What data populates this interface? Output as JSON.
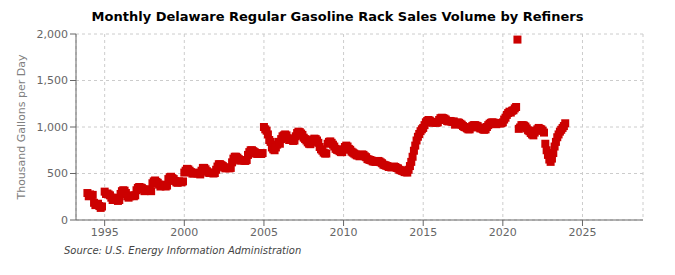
{
  "chart_data": {
    "type": "scatter",
    "title": "Monthly Delaware Regular Gasoline Rack Sales Volume by Refiners",
    "ylabel": "Thousand Gallons per Day",
    "annotations": [
      "Source: U.S. Energy Information Administration"
    ],
    "color": "#cc0000",
    "marker": "square",
    "grid": true,
    "xlim": [
      1993.2,
      2028.8
    ],
    "xticks": [
      1995,
      2000,
      2005,
      2010,
      2015,
      2020,
      2025
    ],
    "ylim": [
      0,
      2000
    ],
    "yticks": [
      0,
      500,
      {
        "value": 1000,
        "label": "1,000"
      },
      {
        "value": 1500,
        "label": "1,500"
      },
      {
        "value": 2000,
        "label": "2,000"
      }
    ],
    "x": [
      1993.917,
      1994,
      1994.083,
      1994.167,
      1994.25,
      1994.333,
      1994.417,
      1994.5,
      1994.583,
      1994.667,
      1994.75,
      1994.833,
      1995,
      1995.083,
      1995.167,
      1995.25,
      1995.333,
      1995.417,
      1995.5,
      1995.583,
      1995.667,
      1995.75,
      1995.833,
      1995.917,
      1996,
      1996.083,
      1996.167,
      1996.25,
      1996.333,
      1996.417,
      1996.5,
      1996.583,
      1996.667,
      1996.75,
      1996.833,
      1996.917,
      1997,
      1997.083,
      1997.167,
      1997.25,
      1997.333,
      1997.417,
      1997.5,
      1997.583,
      1997.667,
      1997.75,
      1997.833,
      1997.917,
      1998,
      1998.083,
      1998.167,
      1998.25,
      1998.333,
      1998.417,
      1998.5,
      1998.583,
      1998.667,
      1998.75,
      1998.833,
      1998.917,
      1999,
      1999.083,
      1999.167,
      1999.25,
      1999.333,
      1999.417,
      1999.5,
      1999.583,
      1999.667,
      1999.75,
      1999.833,
      1999.917,
      2000,
      2000.083,
      2000.167,
      2000.25,
      2000.333,
      2000.417,
      2000.5,
      2000.583,
      2000.667,
      2000.75,
      2000.833,
      2000.917,
      2001,
      2001.083,
      2001.167,
      2001.25,
      2001.333,
      2001.417,
      2001.5,
      2001.583,
      2001.667,
      2001.75,
      2001.833,
      2001.917,
      2002,
      2002.083,
      2002.167,
      2002.25,
      2002.333,
      2002.417,
      2002.5,
      2002.583,
      2002.667,
      2002.75,
      2002.833,
      2002.917,
      2003,
      2003.083,
      2003.167,
      2003.25,
      2003.333,
      2003.417,
      2003.5,
      2003.583,
      2003.667,
      2003.75,
      2003.833,
      2003.917,
      2004,
      2004.083,
      2004.167,
      2004.25,
      2004.333,
      2004.417,
      2004.5,
      2004.583,
      2004.667,
      2004.75,
      2004.833,
      2004.917,
      2005,
      2005.083,
      2005.167,
      2005.25,
      2005.333,
      2005.417,
      2005.5,
      2005.583,
      2005.667,
      2005.75,
      2005.833,
      2005.917,
      2006,
      2006.083,
      2006.167,
      2006.25,
      2006.333,
      2006.417,
      2006.5,
      2006.583,
      2006.667,
      2006.75,
      2006.833,
      2006.917,
      2007,
      2007.083,
      2007.167,
      2007.25,
      2007.333,
      2007.417,
      2007.5,
      2007.583,
      2007.667,
      2007.75,
      2007.833,
      2007.917,
      2008,
      2008.083,
      2008.167,
      2008.25,
      2008.333,
      2008.417,
      2008.5,
      2008.583,
      2008.667,
      2008.75,
      2008.833,
      2008.917,
      2009,
      2009.083,
      2009.167,
      2009.25,
      2009.333,
      2009.417,
      2009.5,
      2009.583,
      2009.667,
      2009.75,
      2009.833,
      2009.917,
      2010,
      2010.083,
      2010.167,
      2010.25,
      2010.333,
      2010.417,
      2010.5,
      2010.583,
      2010.667,
      2010.75,
      2010.833,
      2010.917,
      2011,
      2011.083,
      2011.167,
      2011.25,
      2011.333,
      2011.417,
      2011.5,
      2011.583,
      2011.667,
      2011.75,
      2011.833,
      2011.917,
      2012,
      2012.083,
      2012.167,
      2012.25,
      2012.333,
      2012.417,
      2012.5,
      2012.583,
      2012.667,
      2012.75,
      2012.833,
      2012.917,
      2013,
      2013.083,
      2013.167,
      2013.25,
      2013.333,
      2013.417,
      2013.5,
      2013.583,
      2013.667,
      2013.75,
      2013.833,
      2013.917,
      2014,
      2014.083,
      2014.167,
      2014.25,
      2014.333,
      2014.417,
      2014.5,
      2014.583,
      2014.667,
      2014.75,
      2014.833,
      2014.917,
      2015,
      2015.083,
      2015.167,
      2015.25,
      2015.333,
      2015.417,
      2015.5,
      2015.583,
      2015.667,
      2015.75,
      2015.833,
      2015.917,
      2016,
      2016.083,
      2016.167,
      2016.25,
      2016.333,
      2016.417,
      2016.5,
      2016.583,
      2016.667,
      2016.75,
      2016.833,
      2016.917,
      2017,
      2017.083,
      2017.167,
      2017.25,
      2017.333,
      2017.417,
      2017.5,
      2017.583,
      2017.667,
      2017.75,
      2017.833,
      2017.917,
      2018,
      2018.083,
      2018.167,
      2018.25,
      2018.333,
      2018.417,
      2018.5,
      2018.583,
      2018.667,
      2018.75,
      2018.833,
      2018.917,
      2019,
      2019.083,
      2019.167,
      2019.25,
      2019.333,
      2019.417,
      2019.5,
      2019.583,
      2019.667,
      2019.75,
      2019.833,
      2019.917,
      2020,
      2020.083,
      2020.167,
      2020.25,
      2020.333,
      2020.417,
      2020.5,
      2020.583,
      2020.667,
      2020.75,
      2020.833,
      2020.917,
      2021,
      2021.083,
      2021.167,
      2021.25,
      2021.333,
      2021.417,
      2021.5,
      2021.583,
      2021.667,
      2021.75,
      2021.833,
      2021.917,
      2022,
      2022.083,
      2022.167,
      2022.25,
      2022.333,
      2022.417,
      2022.5,
      2022.583,
      2022.667,
      2022.75,
      2022.833,
      2022.917,
      2023,
      2023.083,
      2023.167,
      2023.25,
      2023.333,
      2023.417,
      2023.5,
      2023.583,
      2023.667,
      2023.75,
      2023.833,
      2023.917
    ],
    "values": [
      290,
      255,
      275,
      260,
      270,
      185,
      160,
      170,
      175,
      150,
      130,
      145,
      305,
      280,
      285,
      275,
      265,
      240,
      215,
      230,
      240,
      225,
      205,
      215,
      280,
      310,
      320,
      315,
      290,
      255,
      240,
      255,
      260,
      265,
      255,
      265,
      320,
      345,
      355,
      350,
      345,
      330,
      310,
      325,
      330,
      320,
      315,
      310,
      395,
      415,
      425,
      410,
      400,
      380,
      360,
      370,
      380,
      370,
      360,
      370,
      440,
      460,
      465,
      450,
      440,
      420,
      405,
      400,
      415,
      410,
      405,
      415,
      510,
      530,
      550,
      545,
      530,
      515,
      500,
      500,
      510,
      505,
      500,
      505,
      490,
      530,
      560,
      560,
      545,
      525,
      510,
      505,
      510,
      505,
      500,
      505,
      540,
      575,
      600,
      600,
      590,
      580,
      565,
      555,
      565,
      560,
      555,
      560,
      620,
      660,
      680,
      680,
      670,
      655,
      640,
      640,
      645,
      640,
      635,
      645,
      700,
      730,
      750,
      750,
      740,
      730,
      715,
      710,
      720,
      715,
      710,
      720,
      1000,
      975,
      960,
      920,
      860,
      840,
      780,
      760,
      750,
      780,
      810,
      840,
      820,
      870,
      900,
      910,
      920,
      910,
      880,
      860,
      870,
      860,
      850,
      855,
      900,
      935,
      950,
      945,
      930,
      915,
      885,
      870,
      855,
      835,
      820,
      815,
      840,
      865,
      875,
      870,
      855,
      830,
      785,
      760,
      745,
      725,
      715,
      715,
      820,
      840,
      845,
      830,
      810,
      790,
      765,
      755,
      750,
      740,
      730,
      730,
      760,
      785,
      800,
      790,
      765,
      755,
      735,
      725,
      715,
      705,
      695,
      695,
      685,
      700,
      705,
      700,
      685,
      675,
      655,
      650,
      645,
      640,
      630,
      630,
      625,
      630,
      635,
      630,
      620,
      610,
      595,
      590,
      585,
      580,
      570,
      570,
      565,
      570,
      575,
      570,
      560,
      555,
      540,
      535,
      530,
      525,
      515,
      515,
      510,
      540,
      580,
      625,
      680,
      745,
      800,
      855,
      895,
      925,
      955,
      975,
      990,
      1020,
      1050,
      1065,
      1075,
      1068,
      1055,
      1045,
      1055,
      1050,
      1045,
      1050,
      1075,
      1095,
      1100,
      1095,
      1090,
      1080,
      1065,
      1060,
      1065,
      1060,
      1055,
      1060,
      1025,
      1040,
      1050,
      1045,
      1035,
      1025,
      1010,
      1000,
      995,
      985,
      975,
      975,
      995,
      1010,
      1020,
      1020,
      1015,
      1010,
      995,
      985,
      985,
      975,
      970,
      975,
      1000,
      1020,
      1035,
      1045,
      1050,
      1048,
      1035,
      1030,
      1040,
      1040,
      1038,
      1042,
      1050,
      1080,
      1100,
      1130,
      1150,
      1165,
      1155,
      1175,
      1180,
      1200,
      1215,
      1940,
      980,
      995,
      1020,
      1020,
      1015,
      1005,
      985,
      965,
      955,
      935,
      920,
      910,
      940,
      960,
      975,
      990,
      980,
      975,
      960,
      940,
      820,
      750,
      700,
      650,
      625,
      660,
      720,
      790,
      840,
      890,
      920,
      950,
      970,
      990,
      1010,
      1040
    ]
  }
}
